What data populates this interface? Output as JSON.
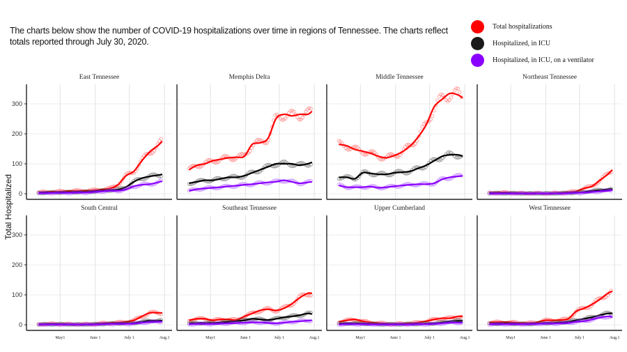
{
  "intro_text": "The charts below show the number of COVID-19 hospitalizations over time in regions of Tennessee. The charts reflect totals reported through July 30, 2020.",
  "legend": [
    {
      "label": "Total hospitalizations",
      "color": "#ff0000"
    },
    {
      "label": "Hospitalized, in ICU",
      "color": "#1a1a1a"
    },
    {
      "label": "Hospitalized, in ICU, on a ventilator",
      "color": "#8a00ff"
    }
  ],
  "chart_data": {
    "type": "line",
    "title": "",
    "ylabel": "Total Hospitalized",
    "xlabel": "",
    "ylim": [
      -10,
      370
    ],
    "yticks": [
      0,
      100,
      200,
      300
    ],
    "xticks": [
      "May1",
      "June 1",
      "July 1",
      "Aug.1"
    ],
    "xtick_days": [
      19,
      50,
      80,
      111
    ],
    "x_unit": "days since April 12, 2020",
    "x": [
      0,
      7,
      14,
      21,
      28,
      35,
      42,
      49,
      56,
      63,
      70,
      77,
      84,
      91,
      98,
      105,
      109
    ],
    "grid": true,
    "series_names": [
      "Total hospitalizations",
      "Hospitalized, in ICU",
      "Hospitalized, in ICU, on a ventilator"
    ],
    "series_colors": [
      "#ff0000",
      "#000000",
      "#8a00ff"
    ],
    "panels": [
      {
        "name": "East Tennessee",
        "series": [
          {
            "name": "Total hospitalizations",
            "values": [
              5,
              6,
              7,
              8,
              9,
              10,
              10,
              12,
              14,
              18,
              30,
              60,
              75,
              110,
              140,
              160,
              175
            ]
          },
          {
            "name": "Hospitalized, in ICU",
            "values": [
              3,
              4,
              4,
              5,
              5,
              6,
              6,
              8,
              10,
              12,
              14,
              22,
              40,
              52,
              58,
              62,
              65
            ]
          },
          {
            "name": "Hospitalized, in ICU, on a ventilator",
            "values": [
              2,
              2,
              3,
              3,
              3,
              4,
              4,
              6,
              8,
              10,
              10,
              14,
              25,
              30,
              32,
              38,
              42
            ]
          }
        ]
      },
      {
        "name": "Memphis Delta",
        "series": [
          {
            "name": "Total hospitalizations",
            "values": [
              80,
              95,
              100,
              110,
              115,
              120,
              122,
              125,
              165,
              170,
              185,
              250,
              265,
              260,
              265,
              265,
              275
            ]
          },
          {
            "name": "Hospitalized, in ICU",
            "values": [
              35,
              40,
              45,
              45,
              50,
              55,
              55,
              60,
              70,
              80,
              90,
              100,
              100,
              100,
              95,
              100,
              105
            ]
          },
          {
            "name": "Hospitalized, in ICU, on a ventilator",
            "values": [
              10,
              15,
              18,
              20,
              22,
              25,
              27,
              30,
              32,
              35,
              38,
              40,
              45,
              40,
              35,
              38,
              40
            ]
          }
        ]
      },
      {
        "name": "Middle Tennessee",
        "series": [
          {
            "name": "Total hospitalizations",
            "values": [
              165,
              160,
              148,
              142,
              135,
              125,
              120,
              128,
              140,
              160,
              190,
              230,
              290,
              315,
              335,
              330,
              320
            ]
          },
          {
            "name": "Hospitalized, in ICU",
            "values": [
              55,
              55,
              50,
              70,
              68,
              65,
              65,
              70,
              72,
              75,
              85,
              95,
              110,
              125,
              130,
              130,
              125
            ]
          },
          {
            "name": "Hospitalized, in ICU, on a ventilator",
            "values": [
              28,
              22,
              22,
              22,
              24,
              20,
              22,
              25,
              28,
              30,
              32,
              32,
              35,
              48,
              55,
              58,
              60
            ]
          }
        ]
      },
      {
        "name": "Northeast Tennessee",
        "series": [
          {
            "name": "Total hospitalizations",
            "values": [
              3,
              4,
              4,
              3,
              2,
              2,
              2,
              1,
              2,
              3,
              5,
              8,
              18,
              25,
              45,
              65,
              80
            ]
          },
          {
            "name": "Hospitalized, in ICU",
            "values": [
              2,
              2,
              2,
              2,
              1,
              1,
              1,
              1,
              1,
              2,
              3,
              4,
              6,
              10,
              12,
              15,
              16
            ]
          },
          {
            "name": "Hospitalized, in ICU, on a ventilator",
            "values": [
              1,
              1,
              1,
              1,
              1,
              1,
              1,
              1,
              1,
              1,
              2,
              3,
              4,
              6,
              8,
              10,
              12
            ]
          }
        ]
      },
      {
        "name": "South Central",
        "series": [
          {
            "name": "Total hospitalizations",
            "values": [
              2,
              3,
              3,
              3,
              2,
              2,
              2,
              3,
              5,
              6,
              8,
              10,
              15,
              28,
              40,
              40,
              40
            ]
          },
          {
            "name": "Hospitalized, in ICU",
            "values": [
              1,
              2,
              2,
              2,
              1,
              1,
              1,
              2,
              3,
              4,
              5,
              5,
              6,
              10,
              14,
              14,
              14
            ]
          },
          {
            "name": "Hospitalized, in ICU, on a ventilator",
            "values": [
              1,
              1,
              1,
              1,
              1,
              1,
              1,
              1,
              2,
              3,
              3,
              3,
              4,
              7,
              9,
              10,
              10
            ]
          }
        ]
      },
      {
        "name": "Southeast Tennessee",
        "series": [
          {
            "name": "Total hospitalizations",
            "values": [
              15,
              20,
              20,
              15,
              18,
              18,
              16,
              28,
              38,
              48,
              52,
              48,
              55,
              70,
              90,
              105,
              105
            ]
          },
          {
            "name": "Hospitalized, in ICU",
            "values": [
              5,
              6,
              6,
              6,
              8,
              10,
              12,
              15,
              20,
              18,
              16,
              20,
              25,
              28,
              32,
              38,
              36
            ]
          },
          {
            "name": "Hospitalized, in ICU, on a ventilator",
            "values": [
              2,
              3,
              3,
              3,
              4,
              5,
              6,
              7,
              8,
              8,
              6,
              5,
              7,
              10,
              12,
              14,
              15
            ]
          }
        ]
      },
      {
        "name": "Upper Cumberland",
        "series": [
          {
            "name": "Total hospitalizations",
            "values": [
              10,
              15,
              18,
              12,
              8,
              6,
              4,
              3,
              4,
              5,
              8,
              12,
              18,
              22,
              22,
              28,
              28
            ]
          },
          {
            "name": "Hospitalized, in ICU",
            "values": [
              4,
              5,
              5,
              4,
              3,
              2,
              2,
              2,
              2,
              3,
              3,
              4,
              5,
              8,
              12,
              13,
              13
            ]
          },
          {
            "name": "Hospitalized, in ICU, on a ventilator",
            "values": [
              1,
              2,
              2,
              2,
              1,
              1,
              1,
              1,
              1,
              1,
              2,
              2,
              3,
              5,
              7,
              7,
              7
            ]
          }
        ]
      },
      {
        "name": "West Tennessee",
        "series": [
          {
            "name": "Total hospitalizations",
            "values": [
              8,
              9,
              9,
              8,
              6,
              6,
              8,
              15,
              15,
              16,
              20,
              45,
              55,
              68,
              85,
              105,
              112
            ]
          },
          {
            "name": "Hospitalized, in ICU",
            "values": [
              3,
              4,
              4,
              4,
              3,
              3,
              4,
              6,
              6,
              8,
              10,
              15,
              20,
              25,
              32,
              38,
              38
            ]
          },
          {
            "name": "Hospitalized, in ICU, on a ventilator",
            "values": [
              2,
              2,
              2,
              2,
              2,
              2,
              3,
              4,
              4,
              5,
              6,
              10,
              12,
              18,
              24,
              28,
              26
            ]
          }
        ]
      }
    ]
  }
}
